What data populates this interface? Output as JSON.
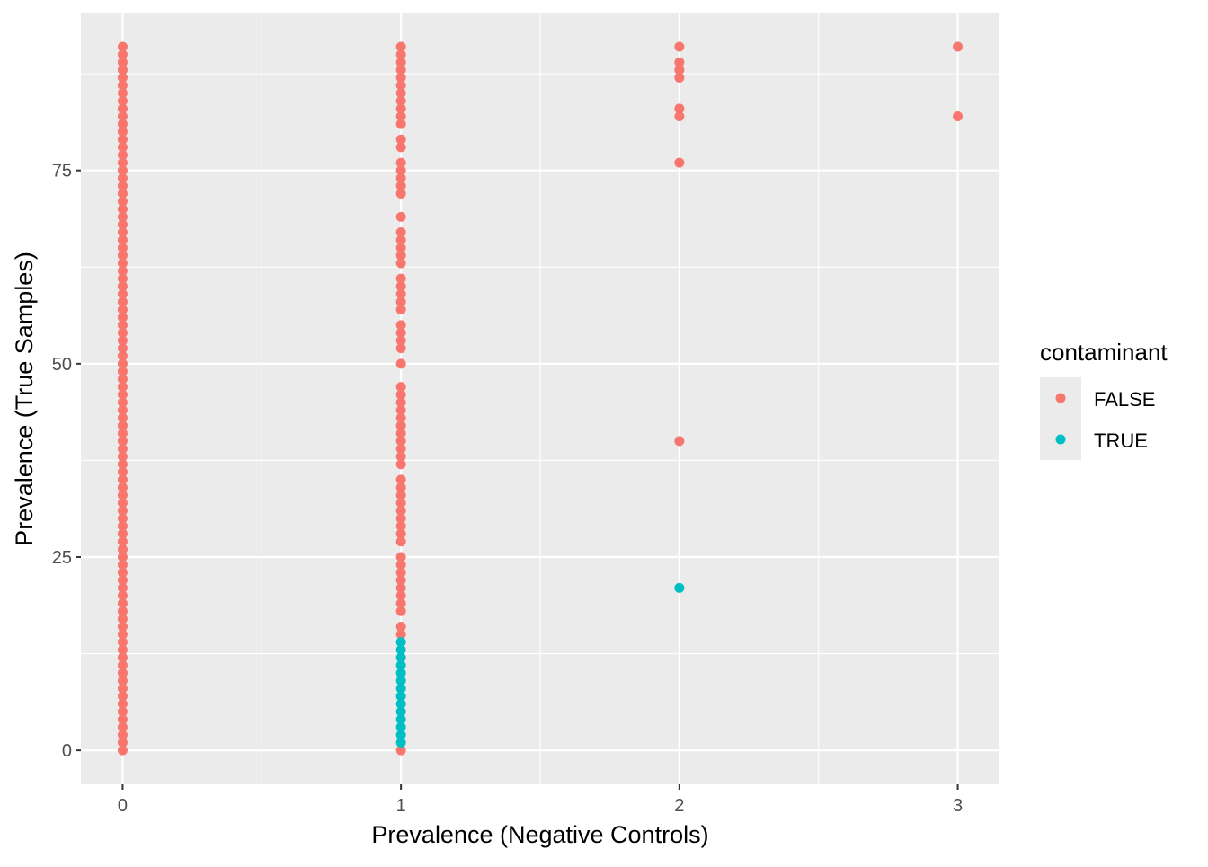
{
  "chart_data": {
    "type": "scatter",
    "title": "",
    "xlabel": "Prevalence (Negative Controls)",
    "ylabel": "Prevalence (True Samples)",
    "xlim": [
      -0.15,
      3.15
    ],
    "ylim": [
      -4.4,
      95.3
    ],
    "x_ticks": [
      0,
      1,
      2,
      3
    ],
    "y_ticks": [
      0,
      25,
      50,
      75
    ],
    "grid": true,
    "legend": {
      "title": "contaminant",
      "position": "right",
      "entries": [
        {
          "label": "FALSE",
          "color": "#F8766D"
        },
        {
          "label": "TRUE",
          "color": "#00BFC4"
        }
      ]
    },
    "series": [
      {
        "name": "FALSE",
        "color": "#F8766D",
        "points": [
          {
            "x": 0,
            "y": [
              0,
              1,
              2,
              3,
              4,
              5,
              6,
              7,
              8,
              9,
              10,
              11,
              12,
              13,
              14,
              15,
              16,
              17,
              18,
              19,
              20,
              21,
              22,
              23,
              24,
              25,
              26,
              27,
              28,
              29,
              30,
              31,
              32,
              33,
              34,
              35,
              36,
              37,
              38,
              39,
              40,
              41,
              42,
              43,
              44,
              45,
              46,
              47,
              48,
              49,
              50,
              51,
              52,
              53,
              54,
              55,
              56,
              57,
              58,
              59,
              60,
              61,
              62,
              63,
              64,
              65,
              66,
              67,
              68,
              69,
              70,
              71,
              72,
              73,
              74,
              75,
              76,
              77,
              78,
              79,
              80,
              81,
              82,
              83,
              84,
              85,
              86,
              87,
              88,
              89,
              90,
              91
            ]
          },
          {
            "x": 1,
            "y": [
              0,
              15,
              16,
              18,
              19,
              20,
              21,
              22,
              23,
              24,
              25,
              27,
              28,
              29,
              30,
              31,
              32,
              33,
              34,
              35,
              37,
              38,
              39,
              40,
              41,
              42,
              43,
              44,
              45,
              46,
              47,
              50,
              52,
              53,
              54,
              55,
              57,
              58,
              59,
              60,
              61,
              63,
              64,
              65,
              66,
              67,
              69,
              72,
              73,
              74,
              75,
              76,
              78,
              79,
              81,
              82,
              83,
              84,
              85,
              86,
              87,
              88,
              89,
              90,
              91
            ]
          },
          {
            "x": 2,
            "y": [
              40,
              76,
              82,
              83,
              87,
              88,
              89,
              91
            ]
          },
          {
            "x": 3,
            "y": [
              82,
              91
            ]
          }
        ]
      },
      {
        "name": "TRUE",
        "color": "#00BFC4",
        "points": [
          {
            "x": 1,
            "y": [
              1,
              2,
              3,
              4,
              5,
              6,
              7,
              8,
              9,
              10,
              11,
              12,
              13,
              14
            ]
          },
          {
            "x": 2,
            "y": [
              21
            ]
          }
        ]
      }
    ]
  }
}
